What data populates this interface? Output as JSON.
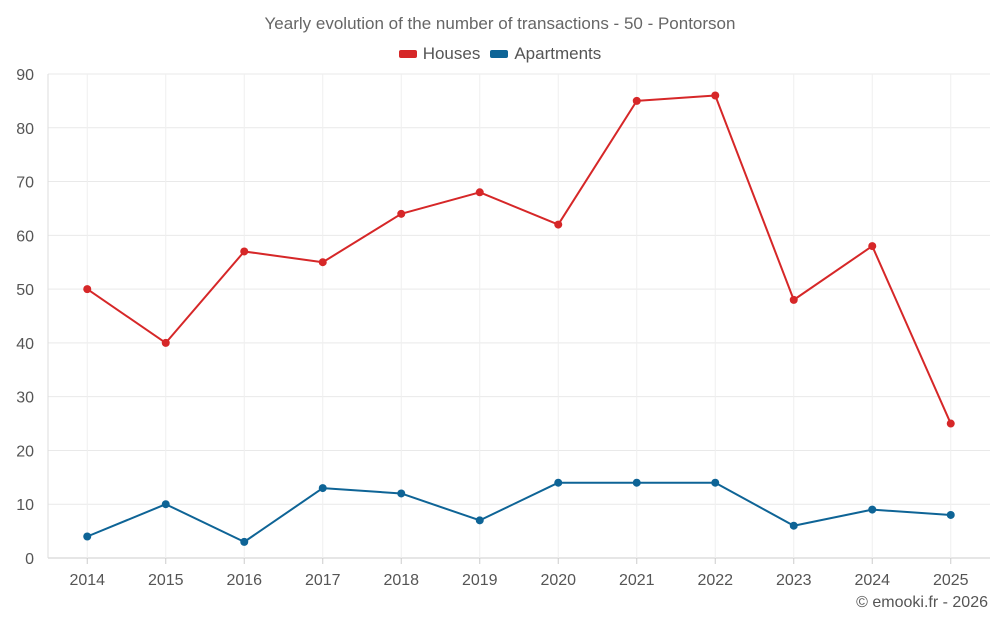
{
  "chart_data": {
    "type": "line",
    "title": "Yearly evolution of the number of transactions - 50 - Pontorson",
    "categories": [
      "2014",
      "2015",
      "2016",
      "2017",
      "2018",
      "2019",
      "2020",
      "2021",
      "2022",
      "2023",
      "2024",
      "2025"
    ],
    "series": [
      {
        "name": "Houses",
        "color": "#d62728",
        "values": [
          50,
          40,
          57,
          55,
          64,
          68,
          62,
          85,
          86,
          48,
          58,
          25
        ]
      },
      {
        "name": "Apartments",
        "color": "#0e6496",
        "values": [
          4,
          10,
          3,
          13,
          12,
          7,
          14,
          14,
          14,
          6,
          9,
          8
        ]
      }
    ],
    "ylim": [
      0,
      90
    ],
    "yticks": [
      0,
      10,
      20,
      30,
      40,
      50,
      60,
      70,
      80,
      90
    ],
    "xlabel": "",
    "ylabel": "",
    "grid": true,
    "legend_position": "top-center"
  },
  "credit": "© emooki.fr - 2026"
}
